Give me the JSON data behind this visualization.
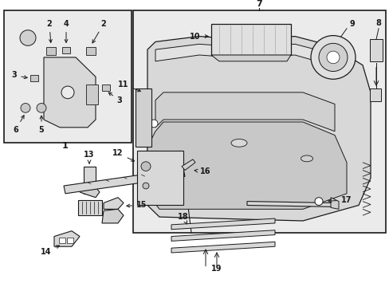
{
  "bg_color": "#ffffff",
  "box_fill": "#e8e8e8",
  "white": "#ffffff",
  "black": "#1a1a1a",
  "figsize": [
    4.89,
    3.6
  ],
  "dpi": 100
}
